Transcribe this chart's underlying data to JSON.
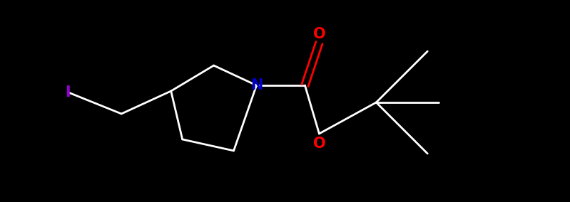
{
  "background_color": "#000000",
  "bond_color": "#ffffff",
  "N_color": "#0000cd",
  "O_color": "#ff0000",
  "I_color": "#9400d3",
  "label_N": "N",
  "label_O1": "O",
  "label_O2": "O",
  "label_I": "I",
  "figsize": [
    7.99,
    2.84
  ],
  "dpi": 100,
  "bond_lw": 2.0,
  "font_size_atom": 15
}
